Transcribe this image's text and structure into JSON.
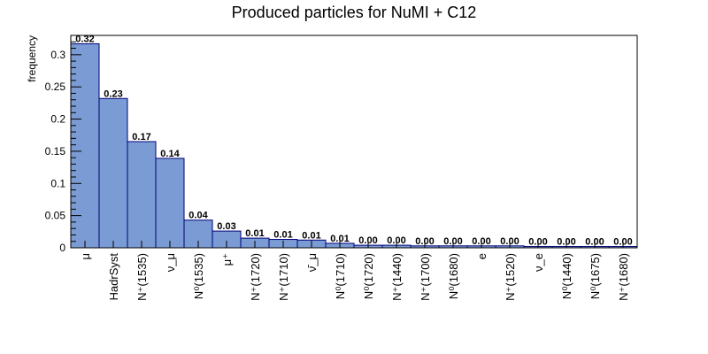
{
  "chart_data": {
    "type": "bar",
    "title": "Produced particles for NuMI + C12",
    "xlabel": "",
    "ylabel": "frequency",
    "ylim": [
      0,
      0.33
    ],
    "yticks": [
      0,
      0.05,
      0.1,
      0.15,
      0.2,
      0.25,
      0.3
    ],
    "ytick_labels": [
      "0",
      "0.05",
      "0.1",
      "0.15",
      "0.2",
      "0.25",
      "0.3"
    ],
    "grid": false,
    "legend": "none",
    "categories": [
      "μ",
      "HadrSyst",
      "N⁺(1535)",
      "ν_μ",
      "N⁰(1535)",
      "μ⁺",
      "N⁺(1720)",
      "N⁺(1710)",
      "ν̄_μ",
      "N⁰(1710)",
      "N⁰(1720)",
      "N⁺(1440)",
      "N⁺(1700)",
      "N⁰(1680)",
      "e",
      "N⁺(1520)",
      "ν_e",
      "N⁰(1440)",
      "N⁰(1675)",
      "N⁺(1680)"
    ],
    "values": [
      0.317,
      0.232,
      0.165,
      0.139,
      0.043,
      0.026,
      0.015,
      0.013,
      0.012,
      0.007,
      0.004,
      0.004,
      0.003,
      0.003,
      0.003,
      0.003,
      0.002,
      0.002,
      0.002,
      0.002
    ],
    "value_labels": [
      "0.32",
      "0.23",
      "0.17",
      "0.14",
      "0.04",
      "0.03",
      "0.01",
      "0.01",
      "0.01",
      "0.01",
      "0.00",
      "0.00",
      "0.00",
      "0.00",
      "0.00",
      "0.00",
      "0.00",
      "0.00",
      "0.00",
      "0.00"
    ],
    "bar_color": "#7a9bd3",
    "bar_edge_color": "#00007a",
    "frame_color": "#000000"
  }
}
